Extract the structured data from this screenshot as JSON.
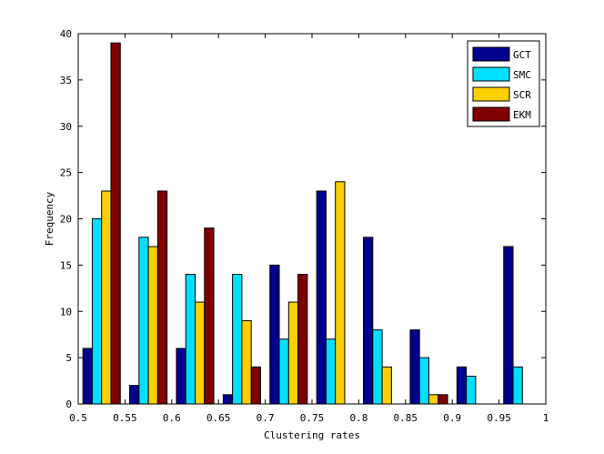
{
  "chart_data": {
    "type": "bar",
    "title": "",
    "xlabel": "Clustering rates",
    "ylabel": "Frequency",
    "xlim": [
      0.5,
      1
    ],
    "ylim": [
      0,
      40
    ],
    "xticks": [
      "0.5",
      "0.55",
      "0.6",
      "0.65",
      "0.7",
      "0.75",
      "0.8",
      "0.85",
      "0.9",
      "0.95",
      "1"
    ],
    "yticks": [
      "0",
      "5",
      "10",
      "15",
      "20",
      "25",
      "30",
      "35",
      "40"
    ],
    "bin_centers": [
      0.525,
      0.575,
      0.625,
      0.675,
      0.725,
      0.775,
      0.825,
      0.875,
      0.925,
      0.975
    ],
    "bin_width": 0.05,
    "grid": false,
    "legend_position": "top-right",
    "series": [
      {
        "name": "GCT",
        "color": "#00008f",
        "values": [
          6,
          2,
          6,
          1,
          15,
          23,
          18,
          8,
          4,
          17
        ]
      },
      {
        "name": "SMC",
        "color": "#00dfff",
        "values": [
          20,
          18,
          14,
          14,
          7,
          7,
          8,
          5,
          3,
          4
        ]
      },
      {
        "name": "SCR",
        "color": "#ffcf00",
        "values": [
          23,
          17,
          11,
          9,
          11,
          24,
          4,
          1,
          0,
          0
        ]
      },
      {
        "name": "EKM",
        "color": "#800000",
        "values": [
          39,
          23,
          19,
          4,
          14,
          0,
          0,
          1,
          0,
          0
        ]
      }
    ]
  }
}
